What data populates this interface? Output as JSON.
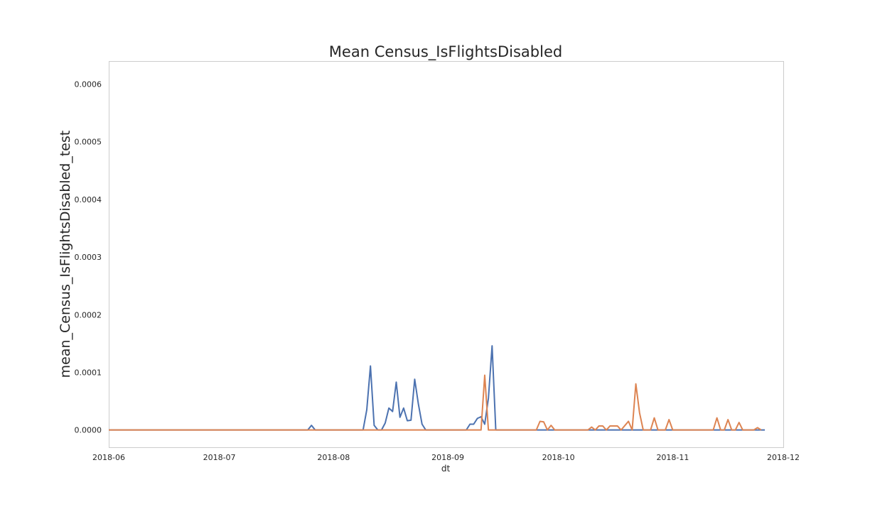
{
  "chart_data": {
    "type": "line",
    "title": "Mean Census_IsFlightsDisabled",
    "xlabel": "dt",
    "ylabel": "mean_Census_IsFlightsDisabled_test",
    "xlim": [
      "2018-06-01",
      "2018-12-01"
    ],
    "ylim": [
      -3e-05,
      0.00064
    ],
    "x_ticks": [
      "2018-06",
      "2018-07",
      "2018-08",
      "2018-09",
      "2018-10",
      "2018-11",
      "2018-12"
    ],
    "y_ticks": [
      "0.0000",
      "0.0001",
      "0.0002",
      "0.0003",
      "0.0004",
      "0.0005",
      "0.0006"
    ],
    "grid": false,
    "legend": null,
    "series": [
      {
        "color": "#4c72b0",
        "points": [
          [
            "2018-06-01",
            0
          ],
          [
            "2018-07-25",
            0
          ],
          [
            "2018-07-26",
            8e-06
          ],
          [
            "2018-07-27",
            0
          ],
          [
            "2018-08-09",
            0
          ],
          [
            "2018-08-10",
            3.5e-05
          ],
          [
            "2018-08-11",
            0.000111
          ],
          [
            "2018-08-12",
            8e-06
          ],
          [
            "2018-08-13",
            0
          ],
          [
            "2018-08-14",
            0
          ],
          [
            "2018-08-15",
            1.2e-05
          ],
          [
            "2018-08-16",
            3.8e-05
          ],
          [
            "2018-08-17",
            3.2e-05
          ],
          [
            "2018-08-18",
            8.3e-05
          ],
          [
            "2018-08-19",
            2.2e-05
          ],
          [
            "2018-08-20",
            3.8e-05
          ],
          [
            "2018-08-21",
            1.6e-05
          ],
          [
            "2018-08-22",
            1.7e-05
          ],
          [
            "2018-08-23",
            8.8e-05
          ],
          [
            "2018-08-24",
            4.5e-05
          ],
          [
            "2018-08-25",
            1e-05
          ],
          [
            "2018-08-26",
            0
          ],
          [
            "2018-09-06",
            0
          ],
          [
            "2018-09-07",
            1e-05
          ],
          [
            "2018-09-08",
            1e-05
          ],
          [
            "2018-09-09",
            2e-05
          ],
          [
            "2018-09-10",
            2.3e-05
          ],
          [
            "2018-09-11",
            1e-05
          ],
          [
            "2018-09-12",
            5.5e-05
          ],
          [
            "2018-09-13",
            0.000146
          ],
          [
            "2018-09-14",
            0
          ],
          [
            "2018-11-26",
            0
          ]
        ]
      },
      {
        "color": "#dd8452",
        "points": [
          [
            "2018-06-01",
            0
          ],
          [
            "2018-09-10",
            0
          ],
          [
            "2018-09-11",
            9.5e-05
          ],
          [
            "2018-09-12",
            0
          ],
          [
            "2018-09-25",
            0
          ],
          [
            "2018-09-26",
            1.5e-05
          ],
          [
            "2018-09-27",
            1.4e-05
          ],
          [
            "2018-09-28",
            0
          ],
          [
            "2018-09-29",
            8e-06
          ],
          [
            "2018-09-30",
            0
          ],
          [
            "2018-10-09",
            0
          ],
          [
            "2018-10-10",
            5e-06
          ],
          [
            "2018-10-11",
            0
          ],
          [
            "2018-10-12",
            7e-06
          ],
          [
            "2018-10-13",
            7e-06
          ],
          [
            "2018-10-14",
            0
          ],
          [
            "2018-10-15",
            7e-06
          ],
          [
            "2018-10-16",
            7e-06
          ],
          [
            "2018-10-17",
            7e-06
          ],
          [
            "2018-10-18",
            0
          ],
          [
            "2018-10-20",
            1.5e-05
          ],
          [
            "2018-10-21",
            0
          ],
          [
            "2018-10-22",
            8e-05
          ],
          [
            "2018-10-23",
            3e-05
          ],
          [
            "2018-10-24",
            0
          ],
          [
            "2018-10-26",
            0
          ],
          [
            "2018-10-27",
            2.1e-05
          ],
          [
            "2018-10-28",
            0
          ],
          [
            "2018-10-30",
            0
          ],
          [
            "2018-10-31",
            1.8e-05
          ],
          [
            "2018-11-01",
            0
          ],
          [
            "2018-11-12",
            0
          ],
          [
            "2018-11-13",
            2.1e-05
          ],
          [
            "2018-11-14",
            0
          ],
          [
            "2018-11-15",
            0
          ],
          [
            "2018-11-16",
            1.8e-05
          ],
          [
            "2018-11-17",
            0
          ],
          [
            "2018-11-18",
            0
          ],
          [
            "2018-11-19",
            1.3e-05
          ],
          [
            "2018-11-20",
            0
          ],
          [
            "2018-11-23",
            0
          ],
          [
            "2018-11-24",
            4e-06
          ],
          [
            "2018-11-25",
            0
          ]
        ]
      }
    ]
  }
}
